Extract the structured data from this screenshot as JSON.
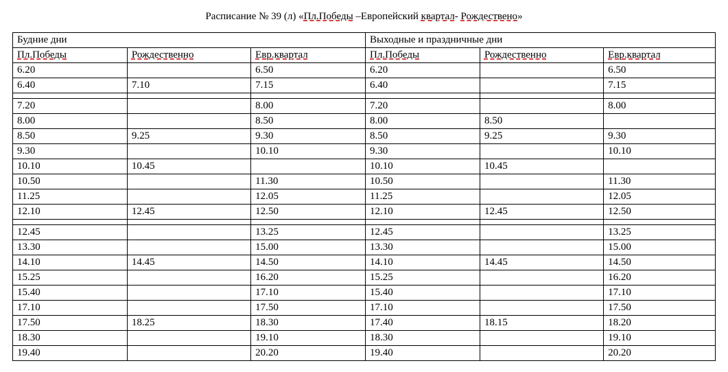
{
  "title": {
    "prefix": "Расписание  № 39 (л) «",
    "u1": "Пл.Победы",
    "mid1": " –Европейский ",
    "u2": "квартал",
    "mid2": "- ",
    "u3": "Рождествено",
    "suffix": "»"
  },
  "sections": {
    "weekday_label": "Будние дни",
    "weekend_label": "Выходные и праздничные дни"
  },
  "columns": {
    "c1": "Пл.Победы",
    "c2": "Рождественно",
    "c3": "Евр.квартал",
    "c4": "Пл.Победы",
    "c5": "Рождественно",
    "c6": "Евр.квартал"
  },
  "rows": [
    [
      "6.20",
      "",
      "6.50",
      "6.20",
      "",
      "6.50"
    ],
    [
      "6.40",
      "7.10",
      "7.15",
      "6.40",
      "",
      "7.15"
    ],
    "spacer",
    [
      "7.20",
      "",
      "8.00",
      "7.20",
      "",
      "8.00"
    ],
    [
      "8.00",
      "",
      "8.50",
      "8.00",
      "8.50",
      ""
    ],
    [
      "8.50",
      "9.25",
      "9.30",
      "8.50",
      "9.25",
      "9.30"
    ],
    [
      "9.30",
      "",
      "10.10",
      "9.30",
      "",
      "10.10"
    ],
    [
      "10.10",
      "10.45",
      "",
      "10.10",
      "10.45",
      ""
    ],
    [
      "10.50",
      "",
      "11.30",
      "10.50",
      "",
      "11.30"
    ],
    [
      "11.25",
      "",
      "12.05",
      "11.25",
      "",
      "12.05"
    ],
    [
      "12.10",
      "12.45",
      "12.50",
      "12.10",
      "12.45",
      "12.50"
    ],
    "spacer",
    [
      "12.45",
      "",
      "13.25",
      "12.45",
      "",
      "13.25"
    ],
    [
      "13.30",
      "",
      "15.00",
      "13.30",
      "",
      "15.00"
    ],
    [
      "14.10",
      "14.45",
      "14.50",
      "14.10",
      "14.45",
      "14.50"
    ],
    [
      "15.25",
      "",
      "16.20",
      "15.25",
      "",
      "16.20"
    ],
    [
      "15.40",
      "",
      "17.10",
      "15.40",
      "",
      "17.10"
    ],
    [
      "17.10",
      "",
      "17.50",
      "17.10",
      "",
      "17.50"
    ],
    [
      "17.50",
      "18.25",
      "18.30",
      "17.40",
      "18.15",
      "18.20"
    ],
    [
      "18.30",
      "",
      "19.10",
      "18.30",
      "",
      "19.10"
    ],
    [
      "19.40",
      "",
      "20.20",
      "19.40",
      "",
      "20.20"
    ]
  ]
}
